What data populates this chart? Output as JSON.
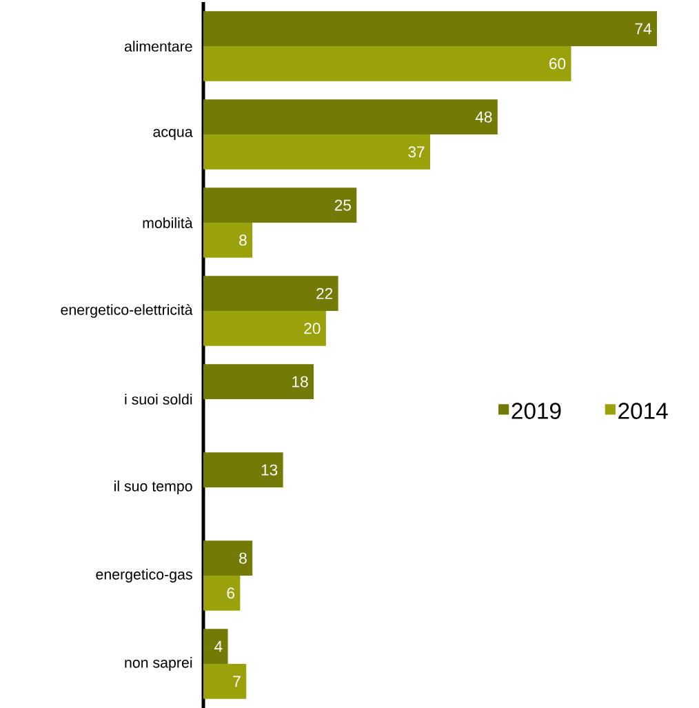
{
  "chart_data": {
    "type": "bar",
    "orientation": "horizontal",
    "categories": [
      "alimentare",
      "acqua",
      "mobilità",
      "energetico-elettricità",
      "i suoi soldi",
      "il suo tempo",
      "energetico-gas",
      "non saprei"
    ],
    "series": [
      {
        "name": "2019",
        "color": "#737a05",
        "values": [
          74,
          48,
          25,
          22,
          18,
          13,
          8,
          4
        ]
      },
      {
        "name": "2014",
        "color": "#9aa10a",
        "values": [
          60,
          37,
          8,
          20,
          null,
          null,
          6,
          7
        ]
      }
    ],
    "data_labels": true,
    "legend": "right"
  }
}
